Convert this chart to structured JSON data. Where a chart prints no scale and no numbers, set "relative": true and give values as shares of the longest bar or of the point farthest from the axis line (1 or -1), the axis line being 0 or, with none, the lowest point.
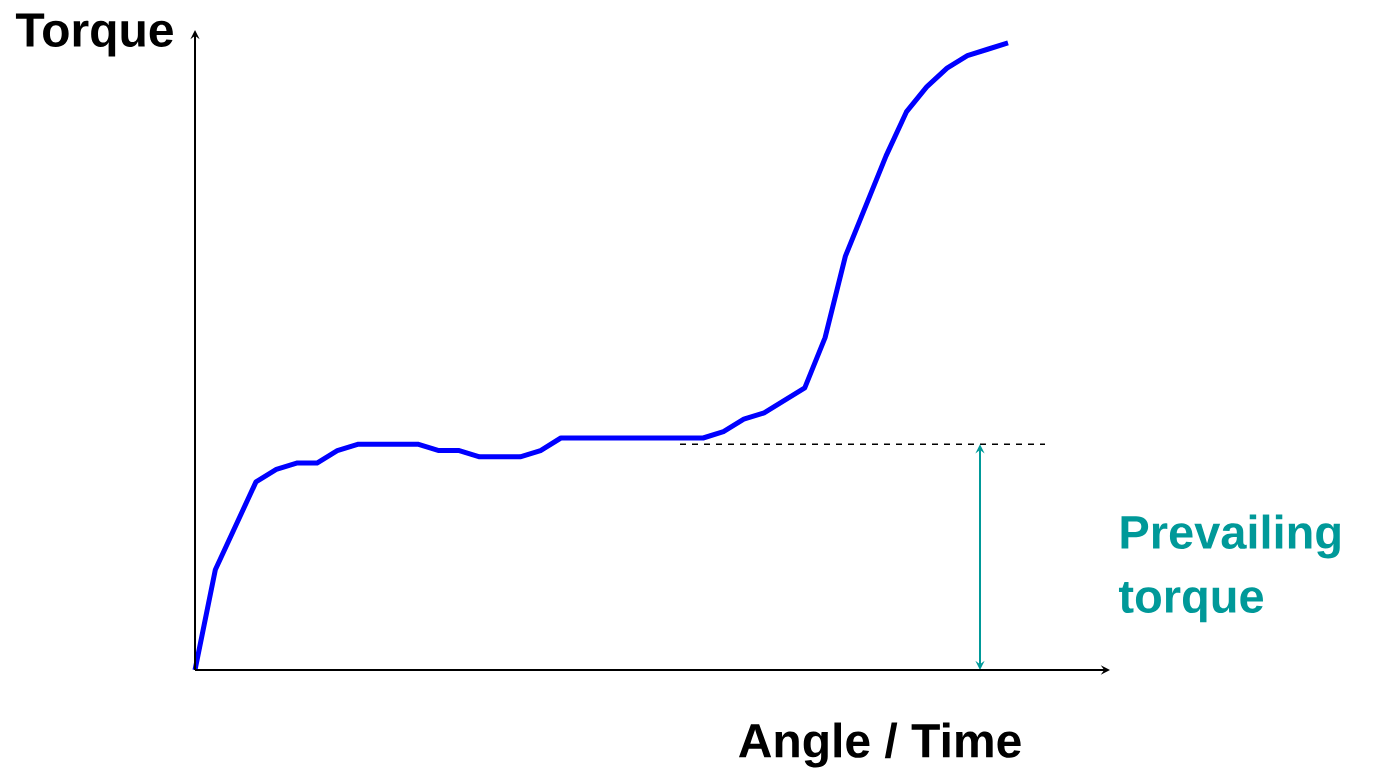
{
  "chart_data": {
    "type": "line",
    "xlabel": "Angle / Time",
    "ylabel": "Torque",
    "relative": true,
    "categories": [
      null,
      null,
      null,
      null,
      null,
      null,
      null,
      null,
      null,
      null,
      null,
      null,
      null,
      null,
      null,
      null,
      null,
      null,
      null,
      null,
      null,
      null,
      null,
      null,
      null,
      null,
      null,
      null,
      null,
      null,
      null,
      null,
      null,
      null,
      null,
      null,
      null,
      null,
      null,
      null,
      null
    ],
    "series": [
      {
        "color": "#0000ff",
        "values": [
          0,
          0.16,
          0.23,
          0.3,
          0.32,
          0.33,
          0.33,
          0.35,
          0.36,
          0.36,
          0.36,
          0.36,
          0.35,
          0.35,
          0.34,
          0.34,
          0.34,
          0.35,
          0.37,
          0.37,
          0.37,
          0.37,
          0.37,
          0.37,
          0.37,
          0.37,
          0.38,
          0.4,
          0.41,
          0.43,
          0.45,
          0.53,
          0.66,
          0.74,
          0.82,
          0.89,
          0.93,
          0.96,
          0.98,
          0.99,
          1.0
        ]
      }
    ],
    "ref_lines": [
      {
        "axis": "y",
        "value": 0.36,
        "label": "Prevailing torque",
        "color": "#000000",
        "line_style": "dashed"
      }
    ],
    "marker": "none",
    "line_style": "solid"
  }
}
